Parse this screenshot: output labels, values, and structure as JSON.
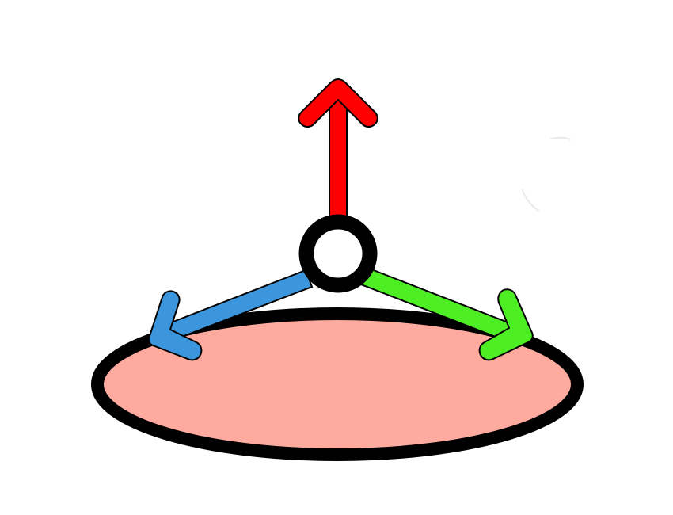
{
  "diagram": {
    "background": "#ffffff",
    "outline_color": "#000000",
    "disc": {
      "fill": "#ffaa9f"
    },
    "origin": {
      "ring_color": "#000000",
      "center_color": "#ffffff"
    },
    "arrows": [
      {
        "id": "up",
        "color": "#ff0000"
      },
      {
        "id": "left",
        "color": "#3b96dd"
      },
      {
        "id": "right",
        "color": "#4eee25"
      }
    ],
    "decoration": {
      "color": "#eaeaea"
    }
  }
}
